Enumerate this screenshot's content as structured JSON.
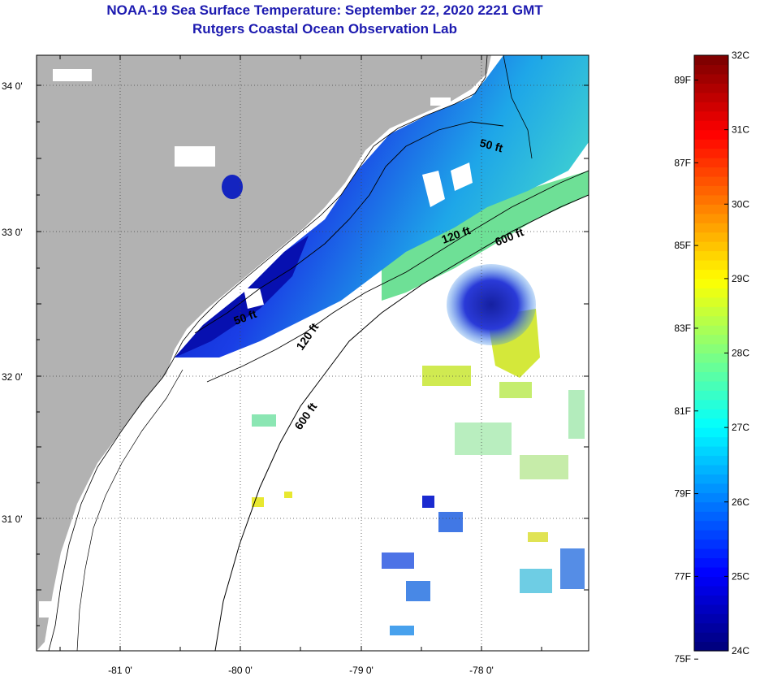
{
  "title": {
    "line1": "NOAA-19 Sea Surface Temperature:  September 22, 2020 2221 GMT",
    "line2": "Rutgers Coastal Ocean Observation Lab"
  },
  "map": {
    "lon_ticks": [
      "-81 0'",
      "-80 0'",
      "-79 0'",
      "-78 0'"
    ],
    "lat_ticks": [
      "34 0'",
      "33 0'",
      "32 0'",
      "31 0'"
    ],
    "contour_labels": [
      "50 ft",
      "120 ft",
      "600 ft",
      "50 ft",
      "120 ft",
      "600 ft"
    ],
    "colors": {
      "land": "#b2b2b2",
      "cloud": "#ffffff",
      "water_cold": "#0a14b4",
      "water_warm": "#c8e632"
    }
  },
  "colorbar": {
    "fahrenheit": [
      "89F",
      "87F",
      "85F",
      "83F",
      "81F",
      "79F",
      "77F",
      "75F"
    ],
    "celsius": [
      "32C",
      "31C",
      "30C",
      "29C",
      "28C",
      "27C",
      "26C",
      "25C",
      "24C"
    ],
    "scale": "jet"
  }
}
